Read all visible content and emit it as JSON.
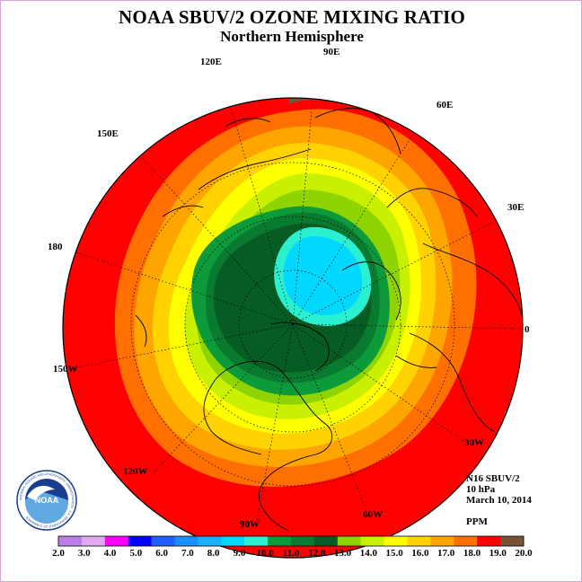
{
  "header": {
    "title": "NOAA SBUV/2 OZONE MIXING RATIO",
    "subtitle": "Northern Hemisphere"
  },
  "longitude_labels": [
    {
      "id": "lon-90e",
      "text": "90E"
    },
    {
      "id": "lon-60e",
      "text": "60E"
    },
    {
      "id": "lon-30e",
      "text": "30E"
    },
    {
      "id": "lon-0",
      "text": "0"
    },
    {
      "id": "lon-30w",
      "text": "30W"
    },
    {
      "id": "lon-60w",
      "text": "60W"
    },
    {
      "id": "lon-90w",
      "text": "90W"
    },
    {
      "id": "lon-120w",
      "text": "120W"
    },
    {
      "id": "lon-150w",
      "text": "150W"
    },
    {
      "id": "lon-180",
      "text": "180"
    },
    {
      "id": "lon-150e",
      "text": "150E"
    },
    {
      "id": "lon-120e",
      "text": "120E"
    }
  ],
  "info": {
    "instrument": "N16 SBUV/2",
    "level": "10 hPa",
    "date": "March 10, 2014",
    "units": "PPM"
  },
  "logo": {
    "text": "NOAA",
    "ring_text": "NATIONAL OCEANIC AND ATMOSPHERIC ADMINISTRATION · U.S. DEPARTMENT OF COMMERCE"
  },
  "colorbar": {
    "ticks": [
      "2.0",
      "3.0",
      "4.0",
      "5.0",
      "6.0",
      "7.0",
      "8.0",
      "9.0",
      "10.0",
      "11.0",
      "12.0",
      "13.0",
      "14.0",
      "15.0",
      "16.0",
      "17.0",
      "18.0",
      "19.0",
      "20.0"
    ],
    "colors": [
      "#b97ee8",
      "#e3a8f2",
      "#ff00ff",
      "#0000ff",
      "#1e60ff",
      "#1a90ff",
      "#1cb0ff",
      "#00d8ff",
      "#2af0d0",
      "#0d9a3a",
      "#0a7a30",
      "#065c22",
      "#8fd400",
      "#c8f000",
      "#ffff00",
      "#ffd200",
      "#ffa500",
      "#ff7000",
      "#ff0000",
      "#7a5236"
    ]
  },
  "map_data": {
    "projection": "north-polar-stereographic",
    "field": "ozone mixing ratio",
    "bands": [
      {
        "min": 19.0,
        "max": 20.0,
        "color": "#7a5236"
      },
      {
        "min": 18.0,
        "max": 19.0,
        "color": "#ff0000"
      },
      {
        "min": 17.0,
        "max": 18.0,
        "color": "#ff7000"
      },
      {
        "min": 16.0,
        "max": 17.0,
        "color": "#ffa500"
      },
      {
        "min": 15.0,
        "max": 16.0,
        "color": "#ffd200"
      },
      {
        "min": 14.0,
        "max": 15.0,
        "color": "#ffff00"
      },
      {
        "min": 13.0,
        "max": 14.0,
        "color": "#c8f000"
      },
      {
        "min": 12.0,
        "max": 13.0,
        "color": "#8fd400"
      },
      {
        "min": 11.0,
        "max": 12.0,
        "color": "#0d9a3a"
      },
      {
        "min": 10.0,
        "max": 11.0,
        "color": "#0a7a30"
      },
      {
        "min": 9.0,
        "max": 10.0,
        "color": "#2af0d0"
      },
      {
        "min": 8.0,
        "max": 9.0,
        "color": "#00d8ff"
      }
    ]
  }
}
